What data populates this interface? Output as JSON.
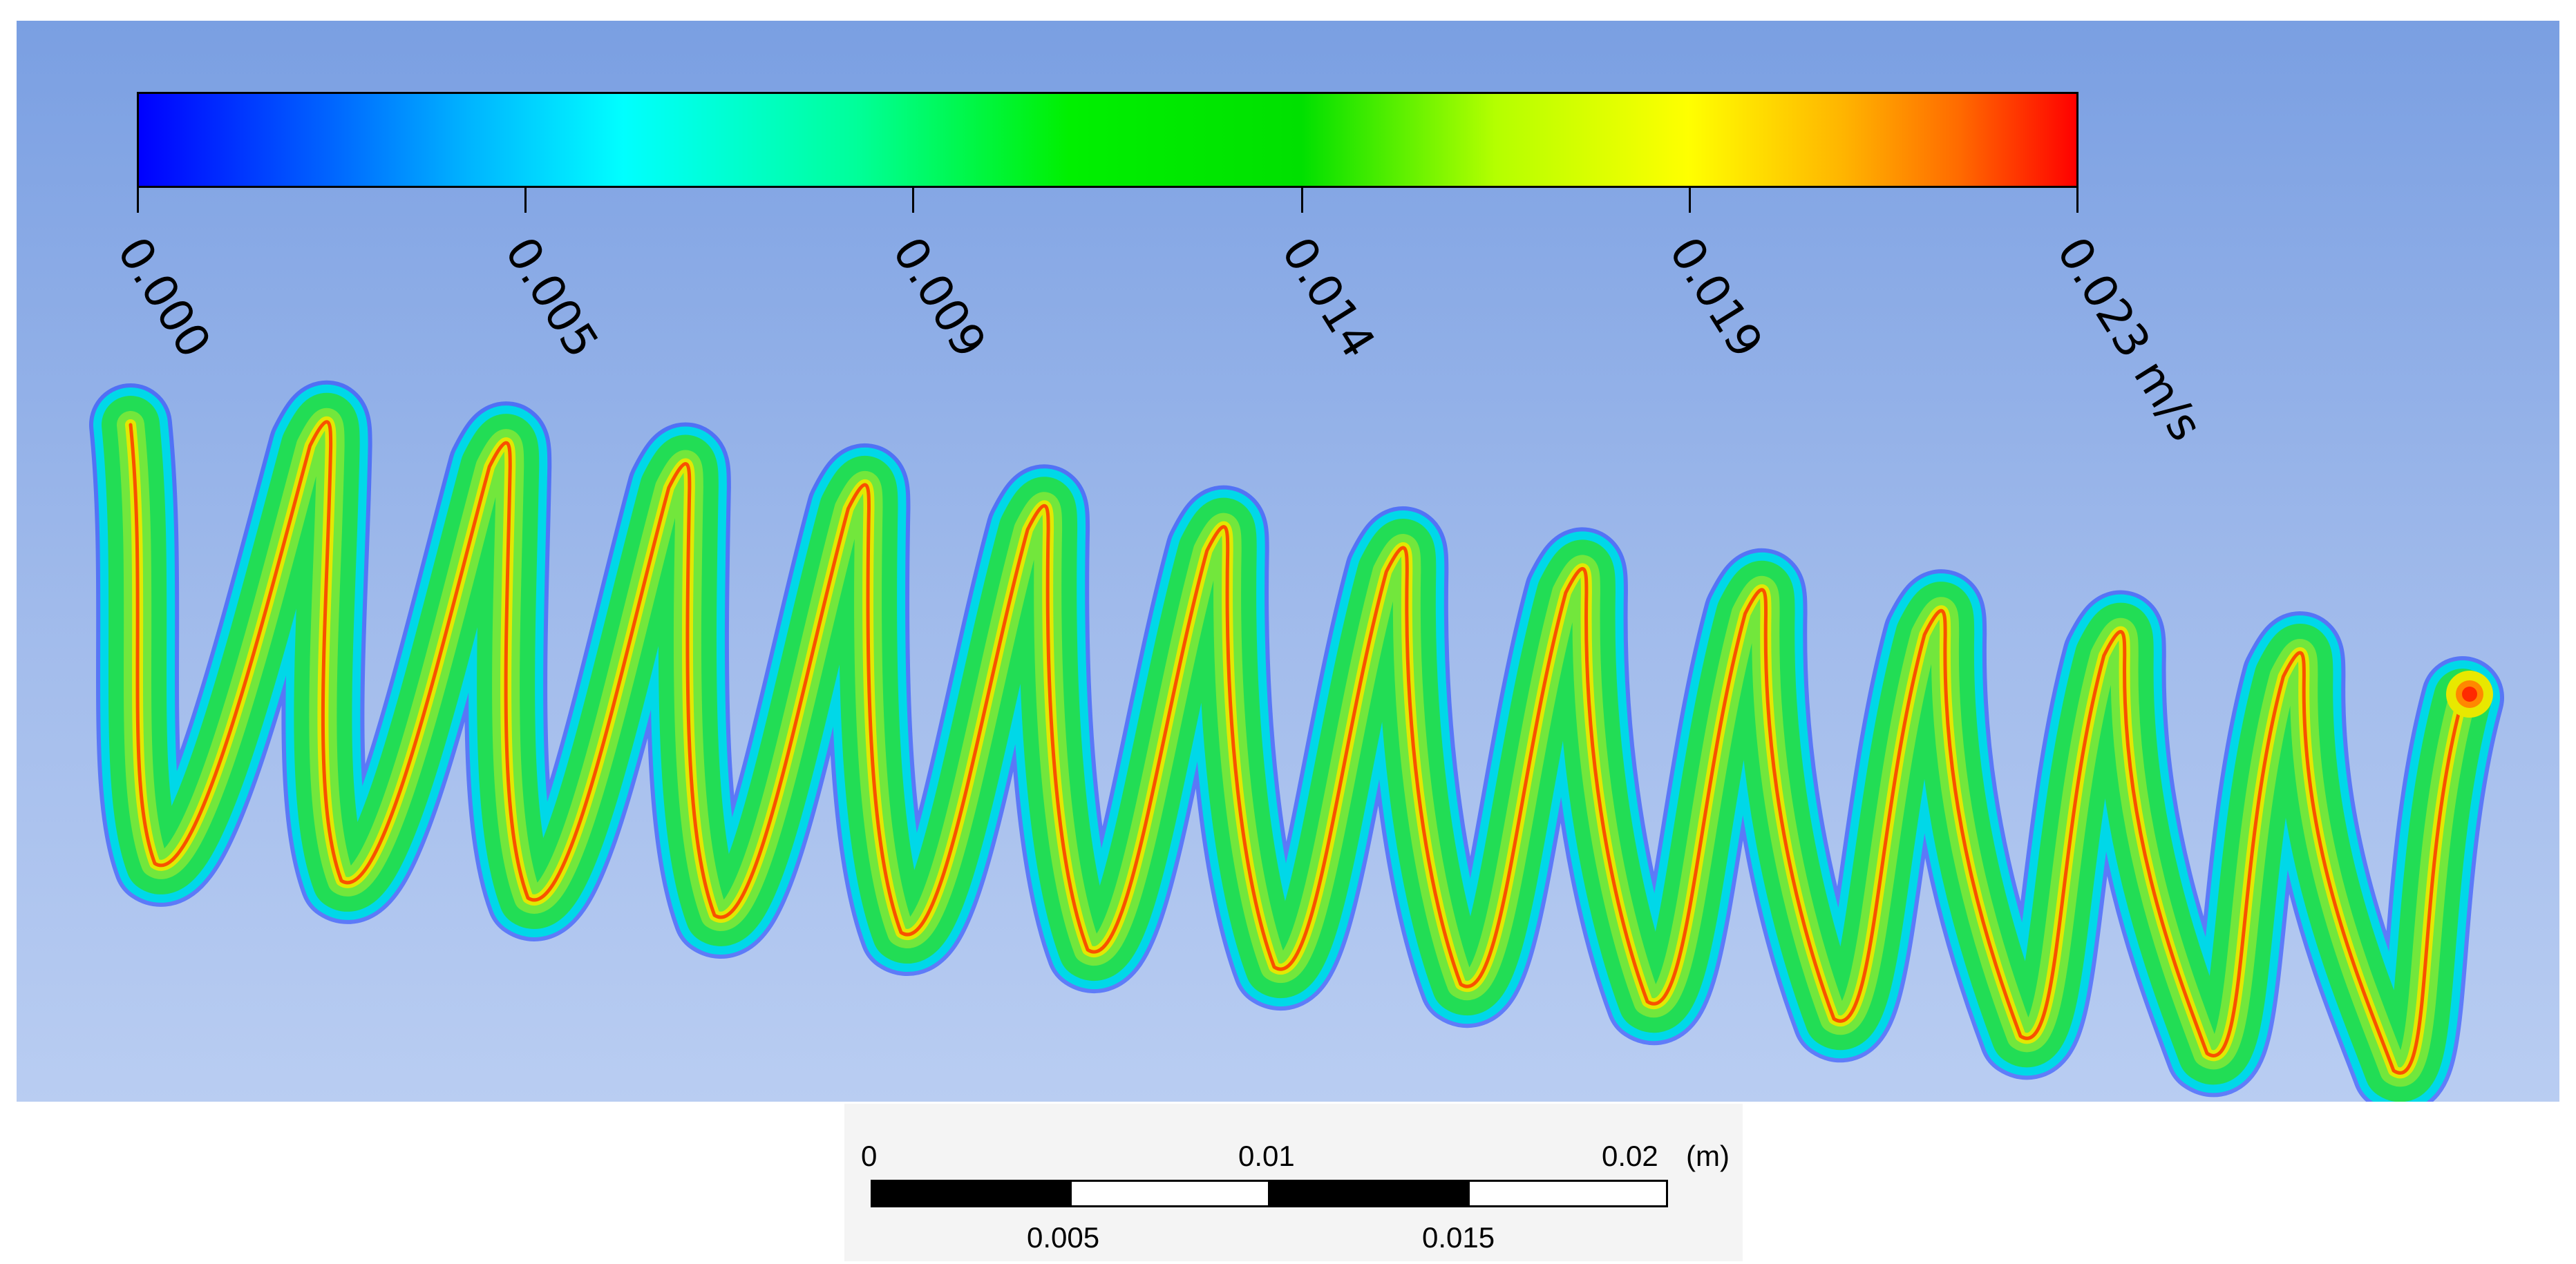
{
  "colorbar": {
    "colors": [
      "#0000ff",
      "#00ffff",
      "#00f000",
      "#ffff00",
      "#ff0000"
    ],
    "ticks": [
      "0.000",
      "0.005",
      "0.009",
      "0.014",
      "0.019",
      "0.023 m/s"
    ]
  },
  "streamlines": {
    "coil_turns": 13,
    "outline_color": "#00d8e8",
    "fill_color": "#22dd55",
    "core_color": "#e8e800",
    "hot_color": "#ff2a00"
  },
  "scale_bar": {
    "top_labels": [
      "0",
      "0.01",
      "0.02"
    ],
    "unit": "(m)",
    "bottom_labels": [
      "0.005",
      "0.015"
    ]
  }
}
